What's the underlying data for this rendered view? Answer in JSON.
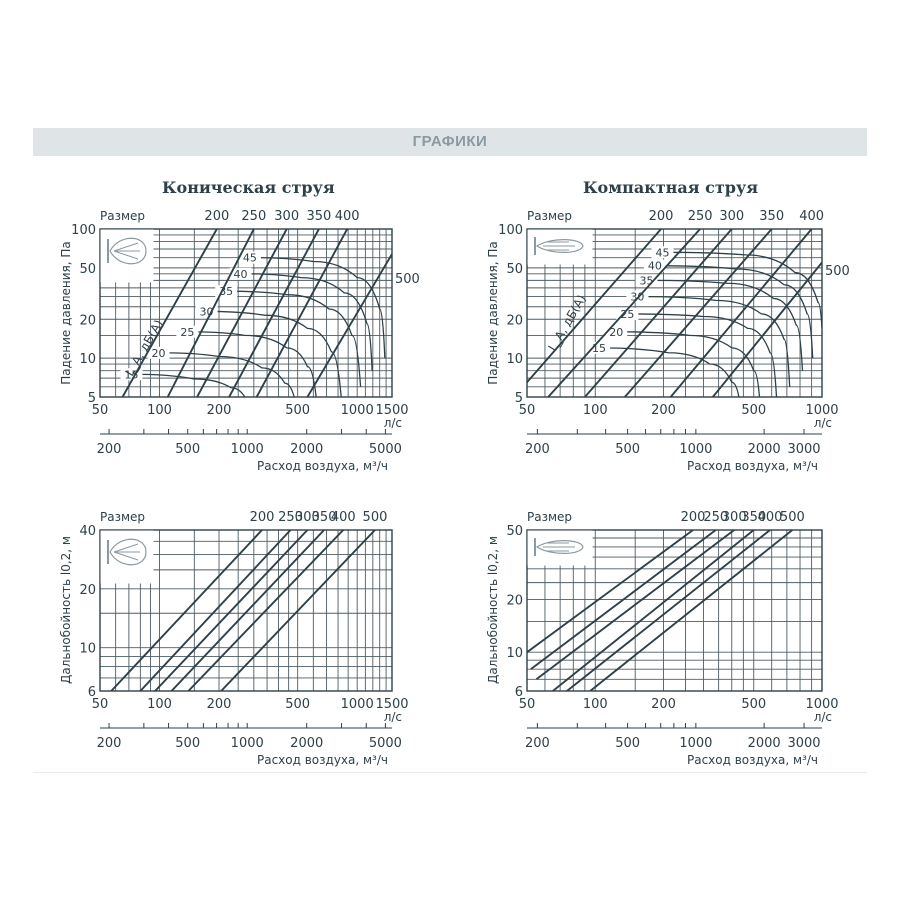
{
  "header": {
    "title": "ГРАФИКИ"
  },
  "sections": [
    {
      "title": "Коническая струя"
    },
    {
      "title": "Компактная струя"
    }
  ],
  "colors": {
    "ink": "#2e4049",
    "header_bg": "#dfe4e6",
    "header_text": "#8a9aa2"
  },
  "chart_data": [
    {
      "type": "line",
      "id": "conical-pressure",
      "subtitle": "Коническая струя",
      "icon": "conical-jet-icon",
      "ylabel": "Падение давления, Па",
      "xlabel": "Расход воздуха, м³/ч",
      "xscale": "log",
      "yscale": "log",
      "xlim_ls": [
        50,
        1500
      ],
      "ylim": [
        5,
        100
      ],
      "x_ticks_ls": [
        50,
        100,
        200,
        500,
        1000,
        1500
      ],
      "x_unit_ls": "л/с",
      "x_ticks_m3h": [
        200,
        500,
        1000,
        2000,
        5000
      ],
      "y_ticks": [
        5,
        10,
        20,
        50,
        100
      ],
      "size_label": "Размер",
      "size_series": [
        {
          "name": "200",
          "points": [
            [
              65,
              5
            ],
            [
              195,
              100
            ]
          ]
        },
        {
          "name": "250",
          "points": [
            [
              110,
              5
            ],
            [
              300,
              100
            ]
          ]
        },
        {
          "name": "300",
          "points": [
            [
              155,
              5
            ],
            [
              440,
              100
            ]
          ]
        },
        {
          "name": "350",
          "points": [
            [
              225,
              5
            ],
            [
              640,
              100
            ]
          ]
        },
        {
          "name": "400",
          "points": [
            [
              310,
              5
            ],
            [
              890,
              100
            ]
          ]
        },
        {
          "name": "500",
          "points": [
            [
              560,
              5
            ],
            [
              1500,
              64
            ]
          ]
        }
      ],
      "noise_label": "L_A, дБ(А)",
      "noise_levels": [
        "15",
        "20",
        "25",
        "30",
        "35",
        "40",
        "45"
      ],
      "noise_curves": [
        {
          "name": "15",
          "points": [
            [
              73,
              7.5
            ],
            [
              150,
              6.9
            ],
            [
              230,
              5.9
            ],
            [
              270,
              5
            ]
          ]
        },
        {
          "name": "20",
          "points": [
            [
              100,
              11
            ],
            [
              200,
              10.3
            ],
            [
              330,
              8.4
            ],
            [
              430,
              6.4
            ],
            [
              480,
              5
            ]
          ]
        },
        {
          "name": "25",
          "points": [
            [
              140,
              16
            ],
            [
              270,
              15
            ],
            [
              440,
              12
            ],
            [
              560,
              8.6
            ],
            [
              620,
              5
            ]
          ]
        },
        {
          "name": "30",
          "points": [
            [
              175,
              23
            ],
            [
              340,
              21.5
            ],
            [
              560,
              17
            ],
            [
              740,
              11.2
            ],
            [
              830,
              5
            ]
          ]
        },
        {
          "name": "35",
          "points": [
            [
              220,
              33
            ],
            [
              440,
              31
            ],
            [
              720,
              24
            ],
            [
              940,
              15
            ],
            [
              1040,
              6
            ]
          ]
        },
        {
          "name": "40",
          "points": [
            [
              260,
              45
            ],
            [
              520,
              42
            ],
            [
              860,
              32
            ],
            [
              1120,
              18.5
            ],
            [
              1190,
              8
            ]
          ]
        },
        {
          "name": "45",
          "points": [
            [
              290,
              60
            ],
            [
              600,
              56
            ],
            [
              1000,
              42
            ],
            [
              1300,
              24
            ],
            [
              1380,
              10
            ]
          ]
        }
      ]
    },
    {
      "type": "line",
      "id": "compact-pressure",
      "subtitle": "Компактная струя",
      "icon": "compact-jet-icon",
      "ylabel": "Падение давления, Па",
      "xlabel": "Расход воздуха, м³/ч",
      "xscale": "log",
      "yscale": "log",
      "xlim_ls": [
        50,
        1000
      ],
      "ylim": [
        5,
        100
      ],
      "x_ticks_ls": [
        50,
        100,
        200,
        500,
        1000
      ],
      "x_unit_ls": "л/с",
      "x_ticks_m3h": [
        200,
        500,
        1000,
        2000,
        3000
      ],
      "y_ticks": [
        5,
        10,
        20,
        50,
        100
      ],
      "size_label": "Размер",
      "size_series": [
        {
          "name": "200",
          "points": [
            [
              50,
              6.5
            ],
            [
              195,
              100
            ]
          ]
        },
        {
          "name": "250",
          "points": [
            [
              62,
              5
            ],
            [
              290,
              100
            ]
          ]
        },
        {
          "name": "300",
          "points": [
            [
              90,
              5
            ],
            [
              400,
              100
            ]
          ]
        },
        {
          "name": "350",
          "points": [
            [
              135,
              5
            ],
            [
              600,
              100
            ]
          ]
        },
        {
          "name": "400",
          "points": [
            [
              215,
              5
            ],
            [
              900,
              100
            ]
          ]
        },
        {
          "name": "500",
          "points": [
            [
              330,
              5
            ],
            [
              1000,
              55
            ]
          ]
        }
      ],
      "noise_label": "L_A, дБ(А)",
      "noise_levels": [
        "15",
        "20",
        "25",
        "30",
        "35",
        "40",
        "45"
      ],
      "noise_curves": [
        {
          "name": "15",
          "points": [
            [
              105,
              12
            ],
            [
              210,
              11
            ],
            [
              320,
              9
            ],
            [
              400,
              6.5
            ],
            [
              430,
              5
            ]
          ]
        },
        {
          "name": "20",
          "points": [
            [
              125,
              16
            ],
            [
              260,
              15
            ],
            [
              400,
              12
            ],
            [
              500,
              8
            ],
            [
              530,
              5
            ]
          ]
        },
        {
          "name": "25",
          "points": [
            [
              140,
              22
            ],
            [
              300,
              21
            ],
            [
              470,
              17
            ],
            [
              590,
              11
            ],
            [
              630,
              5
            ]
          ]
        },
        {
          "name": "30",
          "points": [
            [
              155,
              30
            ],
            [
              340,
              28
            ],
            [
              540,
              22
            ],
            [
              680,
              14
            ],
            [
              720,
              6
            ]
          ]
        },
        {
          "name": "35",
          "points": [
            [
              170,
              40
            ],
            [
              380,
              38
            ],
            [
              610,
              29
            ],
            [
              770,
              18
            ],
            [
              820,
              8
            ]
          ]
        },
        {
          "name": "40",
          "points": [
            [
              185,
              52
            ],
            [
              420,
              49
            ],
            [
              680,
              37
            ],
            [
              860,
              22
            ],
            [
              910,
              10
            ]
          ]
        },
        {
          "name": "45",
          "points": [
            [
              200,
              66
            ],
            [
              460,
              63
            ],
            [
              760,
              46
            ],
            [
              960,
              27
            ],
            [
              1000,
              17
            ]
          ]
        }
      ]
    },
    {
      "type": "line",
      "id": "conical-throw",
      "icon": "conical-jet-icon",
      "ylabel": "Дальнобойность l0,2, м",
      "xlabel": "Расход воздуха, м³/ч",
      "xscale": "log",
      "yscale": "log",
      "xlim_ls": [
        50,
        1500
      ],
      "ylim": [
        6,
        40
      ],
      "x_ticks_ls": [
        50,
        100,
        200,
        500,
        1000,
        1500
      ],
      "x_unit_ls": "л/с",
      "x_ticks_m3h": [
        200,
        500,
        1000,
        2000,
        5000
      ],
      "y_ticks": [
        6,
        10,
        20,
        40
      ],
      "size_label": "Размер",
      "size_series": [
        {
          "name": "200",
          "points": [
            [
              57,
              6
            ],
            [
              330,
              40
            ]
          ]
        },
        {
          "name": "250",
          "points": [
            [
              80,
              6
            ],
            [
              460,
              40
            ]
          ]
        },
        {
          "name": "300",
          "points": [
            [
              95,
              6
            ],
            [
              560,
              40
            ]
          ]
        },
        {
          "name": "350",
          "points": [
            [
              115,
              6
            ],
            [
              680,
              40
            ]
          ]
        },
        {
          "name": "400",
          "points": [
            [
              140,
              6
            ],
            [
              850,
              40
            ]
          ]
        },
        {
          "name": "500",
          "points": [
            [
              205,
              6
            ],
            [
              1230,
              40
            ]
          ]
        }
      ]
    },
    {
      "type": "line",
      "id": "compact-throw",
      "icon": "compact-jet-icon",
      "ylabel": "Дальнобойность l0,2, м",
      "xlabel": "Расход воздуха, м³/ч",
      "xscale": "log",
      "yscale": "log",
      "xlim_ls": [
        50,
        1000
      ],
      "ylim": [
        6,
        50
      ],
      "x_ticks_ls": [
        50,
        100,
        200,
        500,
        1000
      ],
      "x_unit_ls": "л/с",
      "x_ticks_m3h": [
        200,
        500,
        1000,
        2000,
        3000
      ],
      "y_ticks": [
        6,
        10,
        20,
        50
      ],
      "size_label": "Размер",
      "size_series": [
        {
          "name": "200",
          "points": [
            [
              50,
              10
            ],
            [
              270,
              50
            ]
          ]
        },
        {
          "name": "250",
          "points": [
            [
              52,
              8
            ],
            [
              340,
              50
            ]
          ]
        },
        {
          "name": "300",
          "points": [
            [
              55,
              7
            ],
            [
              410,
              50
            ]
          ]
        },
        {
          "name": "350",
          "points": [
            [
              65,
              6
            ],
            [
              500,
              50
            ]
          ]
        },
        {
          "name": "400",
          "points": [
            [
              75,
              6
            ],
            [
              590,
              50
            ]
          ]
        },
        {
          "name": "500",
          "points": [
            [
              95,
              6
            ],
            [
              740,
              50
            ]
          ]
        }
      ]
    }
  ]
}
